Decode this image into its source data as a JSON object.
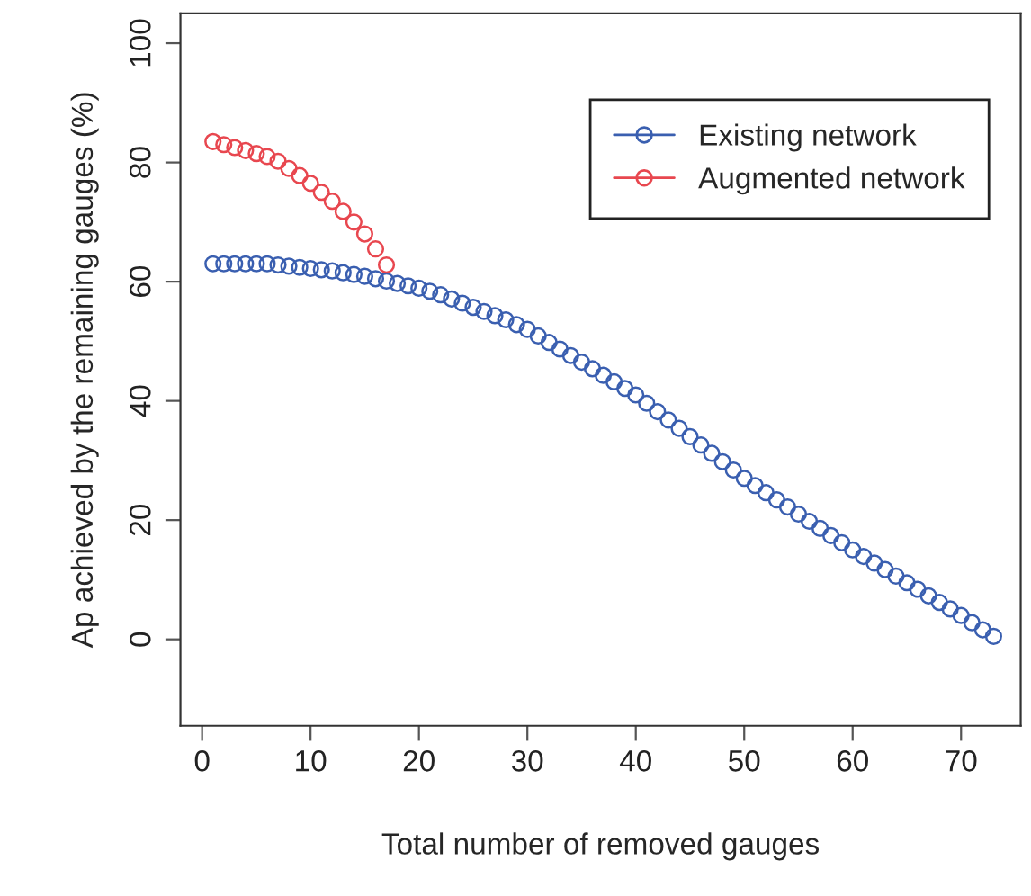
{
  "chart_data": {
    "type": "scatter",
    "xlabel": "Total number of removed gauges",
    "ylabel": "Ap achieved by the remaining gauges (%)",
    "xlim": [
      -2,
      75.5
    ],
    "ylim": [
      -14.5,
      105
    ],
    "xticks": [
      0,
      10,
      20,
      30,
      40,
      50,
      60,
      70
    ],
    "yticks": [
      0,
      20,
      40,
      60,
      80,
      100
    ],
    "marker": "circle",
    "legend": "top right",
    "grid": false,
    "series": [
      {
        "name": "Existing network",
        "color": "#3a5fb0",
        "x": [
          1,
          2,
          3,
          4,
          5,
          6,
          7,
          8,
          9,
          10,
          11,
          12,
          13,
          14,
          15,
          16,
          17,
          18,
          19,
          20,
          21,
          22,
          23,
          24,
          25,
          26,
          27,
          28,
          29,
          30,
          31,
          32,
          33,
          34,
          35,
          36,
          37,
          38,
          39,
          40,
          41,
          42,
          43,
          44,
          45,
          46,
          47,
          48,
          49,
          50,
          51,
          52,
          53,
          54,
          55,
          56,
          57,
          58,
          59,
          60,
          61,
          62,
          63,
          64,
          65,
          66,
          67,
          68,
          69,
          70,
          71,
          72,
          73
        ],
        "values": [
          63,
          63,
          63,
          63,
          63,
          63,
          62.8,
          62.6,
          62.4,
          62.2,
          62,
          61.8,
          61.5,
          61.2,
          60.9,
          60.5,
          60.1,
          59.7,
          59.3,
          58.9,
          58.4,
          57.8,
          57.1,
          56.4,
          55.7,
          55,
          54.3,
          53.6,
          52.8,
          52,
          50.9,
          49.8,
          48.7,
          47.6,
          46.5,
          45.4,
          44.3,
          43.2,
          42.1,
          41,
          39.6,
          38.2,
          36.8,
          35.4,
          34,
          32.6,
          31.2,
          29.8,
          28.4,
          27,
          25.8,
          24.6,
          23.4,
          22.2,
          21,
          19.8,
          18.6,
          17.4,
          16.2,
          15,
          13.9,
          12.8,
          11.7,
          10.6,
          9.5,
          8.4,
          7.3,
          6.2,
          5.1,
          4,
          2.8,
          1.6,
          0.5
        ]
      },
      {
        "name": "Augmented network",
        "color": "#e8474f",
        "x": [
          1,
          2,
          3,
          4,
          5,
          6,
          7,
          8,
          9,
          10,
          11,
          12,
          13,
          14,
          15,
          16,
          17
        ],
        "values": [
          83.5,
          83,
          82.5,
          82,
          81.5,
          81,
          80.2,
          79,
          77.8,
          76.5,
          75,
          73.5,
          71.8,
          70,
          68,
          65.5,
          62.8
        ]
      }
    ]
  }
}
